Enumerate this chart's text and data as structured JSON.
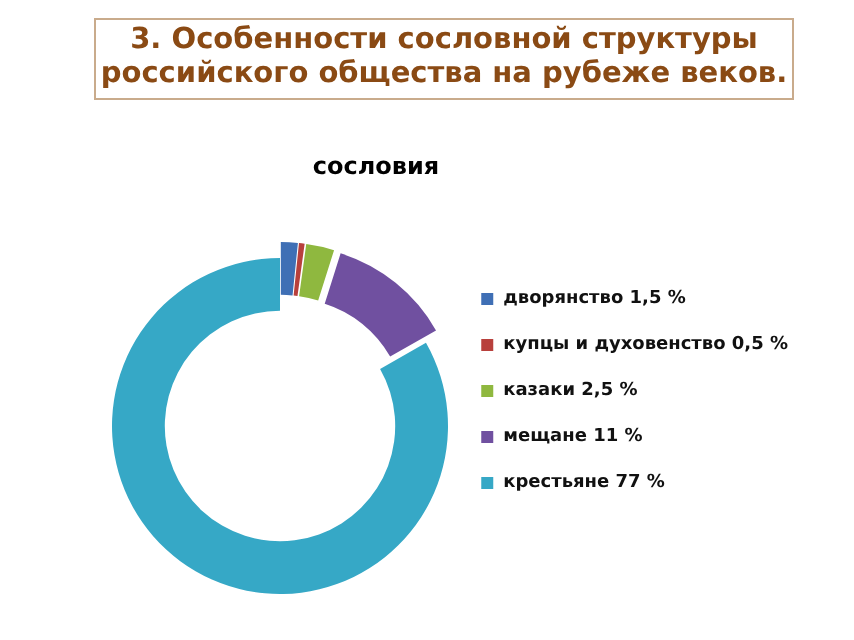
{
  "chart_data": {
    "type": "donut",
    "title": "3. Особенности сословной структуры российского общества на рубеже веков.",
    "subtitle": "сословия",
    "categories": [
      "дворянство 1,5 %",
      "купцы и духовенство 0,5 %",
      "казаки 2,5 %",
      "мещане 11 %",
      "крестьяне 77 %"
    ],
    "values": [
      1.5,
      0.5,
      2.5,
      11,
      77
    ],
    "colors": [
      "#3f6fb5",
      "#b8403c",
      "#8fb83f",
      "#7050a0",
      "#36a8c6"
    ],
    "legend": "right"
  }
}
